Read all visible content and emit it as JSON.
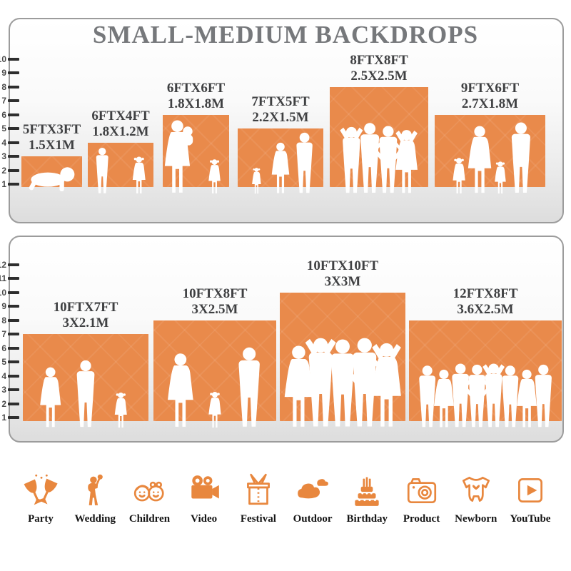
{
  "title": "SMALL-MEDIUM BACKDROPS",
  "colors": {
    "accent_orange": "#e98a4b",
    "icon_orange": "#e8873e",
    "panel_border": "#9c9c9c",
    "title_gray": "#76787b",
    "label_gray": "#3f4042",
    "silhouette": "#ffffff"
  },
  "panels": [
    {
      "name": "top-panel",
      "ruler": {
        "min": 1,
        "max": 10
      },
      "backdrops": [
        {
          "size_ft": "5FTX3FT",
          "size_m": "1.5X1M",
          "w_ft": 5,
          "h_ft": 3,
          "people": [
            {
              "kind": "baby",
              "rel_h": 0.72
            }
          ]
        },
        {
          "size_ft": "6FTX4FT",
          "size_m": "1.8X1.2M",
          "w_ft": 6,
          "h_ft": 4,
          "people": [
            {
              "kind": "boy",
              "rel_h": 1.04
            },
            {
              "kind": "girl",
              "rel_h": 0.84
            }
          ]
        },
        {
          "size_ft": "6FTX6FT",
          "size_m": "1.8X1.8M",
          "w_ft": 6,
          "h_ft": 6,
          "people": [
            {
              "kind": "woman-carrying",
              "rel_h": 1.02
            },
            {
              "kind": "girl",
              "rel_h": 0.48
            }
          ]
        },
        {
          "size_ft": "7FTX5FT",
          "size_m": "2.2X1.5M",
          "w_ft": 7,
          "h_ft": 5,
          "people": [
            {
              "kind": "girl",
              "rel_h": 0.45
            },
            {
              "kind": "woman",
              "rel_h": 0.88
            },
            {
              "kind": "man",
              "rel_h": 1.05
            }
          ]
        },
        {
          "size_ft": "8FTX8FT",
          "size_m": "2.5X2.5M",
          "w_ft": 8,
          "h_ft": 8,
          "people": [
            {
              "kind": "man-armsup",
              "rel_h": 0.67
            },
            {
              "kind": "man",
              "rel_h": 0.71
            },
            {
              "kind": "man-hips",
              "rel_h": 0.68
            },
            {
              "kind": "woman-armsup",
              "rel_h": 0.64
            }
          ]
        },
        {
          "size_ft": "9FTX6FT",
          "size_m": "2.7X1.8M",
          "w_ft": 9,
          "h_ft": 6,
          "people": [
            {
              "kind": "girl",
              "rel_h": 0.5
            },
            {
              "kind": "woman",
              "rel_h": 0.94
            },
            {
              "kind": "girl",
              "rel_h": 0.45
            },
            {
              "kind": "man",
              "rel_h": 0.99
            }
          ]
        }
      ]
    },
    {
      "name": "bottom-panel",
      "ruler": {
        "min": 1,
        "max": 12
      },
      "backdrops": [
        {
          "size_ft": "10FTX7FT",
          "size_m": "3X2.1M",
          "w_ft": 10,
          "h_ft": 7,
          "people": [
            {
              "kind": "woman",
              "rel_h": 0.7
            },
            {
              "kind": "man",
              "rel_h": 0.78
            },
            {
              "kind": "girl",
              "rel_h": 0.41
            }
          ]
        },
        {
          "size_ft": "10FTX8FT",
          "size_m": "3X2.5M",
          "w_ft": 10,
          "h_ft": 8,
          "people": [
            {
              "kind": "woman",
              "rel_h": 0.74
            },
            {
              "kind": "girl",
              "rel_h": 0.36
            },
            {
              "kind": "man",
              "rel_h": 0.8
            }
          ]
        },
        {
          "size_ft": "10FTX10FT",
          "size_m": "3X3M",
          "w_ft": 10,
          "h_ft": 10,
          "people": [
            {
              "kind": "woman",
              "rel_h": 0.64
            },
            {
              "kind": "man-armsup",
              "rel_h": 0.7
            },
            {
              "kind": "man",
              "rel_h": 0.69
            },
            {
              "kind": "man-hips",
              "rel_h": 0.7
            },
            {
              "kind": "woman-armsup",
              "rel_h": 0.66
            }
          ]
        },
        {
          "size_ft": "12FTX8FT",
          "size_m": "3.6X2.5M",
          "w_ft": 12,
          "h_ft": 8,
          "people": [
            {
              "kind": "man",
              "rel_h": 0.62
            },
            {
              "kind": "woman",
              "rel_h": 0.58
            },
            {
              "kind": "man",
              "rel_h": 0.64
            },
            {
              "kind": "man-hips",
              "rel_h": 0.63
            },
            {
              "kind": "man-armsup",
              "rel_h": 0.64
            },
            {
              "kind": "man",
              "rel_h": 0.62
            },
            {
              "kind": "woman",
              "rel_h": 0.58
            },
            {
              "kind": "man",
              "rel_h": 0.63
            }
          ]
        }
      ]
    }
  ],
  "categories": [
    {
      "label": "Party",
      "icon": "party-icon"
    },
    {
      "label": "Wedding",
      "icon": "wedding-icon"
    },
    {
      "label": "Children",
      "icon": "children-icon"
    },
    {
      "label": "Video",
      "icon": "video-icon"
    },
    {
      "label": "Festival",
      "icon": "festival-icon"
    },
    {
      "label": "Outdoor",
      "icon": "outdoor-icon"
    },
    {
      "label": "Birthday",
      "icon": "birthday-icon"
    },
    {
      "label": "Product",
      "icon": "product-icon"
    },
    {
      "label": "Newborn",
      "icon": "newborn-icon"
    },
    {
      "label": "YouTube",
      "icon": "youtube-icon"
    }
  ]
}
